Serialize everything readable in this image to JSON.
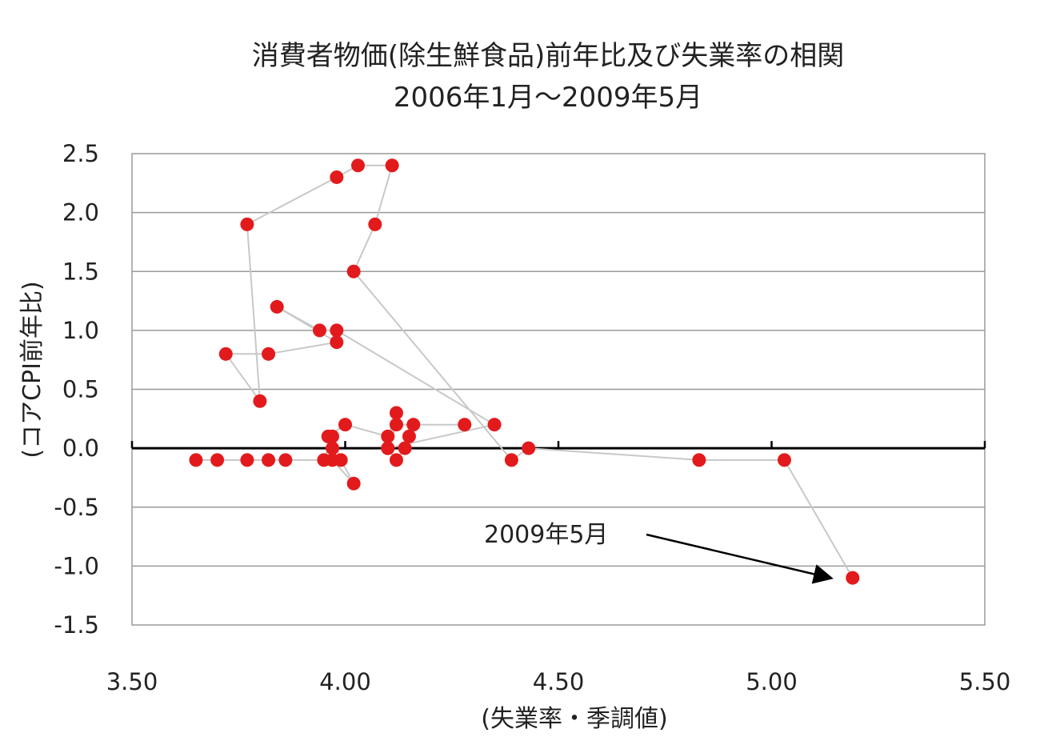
{
  "chart_data": {
    "type": "scatter",
    "title": "消費者物価(除生鮮食品)前年比及び失業率の相関",
    "subtitle": "2006年1月～2009年5月",
    "xlabel": "(失業率・季調値)",
    "ylabel": "(コアCPI前年比)",
    "xlim": [
      3.5,
      5.5
    ],
    "ylim": [
      -1.5,
      2.5
    ],
    "x_ticks": [
      "3.50",
      "4.00",
      "4.50",
      "5.00",
      "5.50"
    ],
    "y_ticks": [
      "2.5",
      "2.0",
      "1.5",
      "1.0",
      "0.5",
      "0.0",
      "-0.5",
      "-1.0",
      "-1.5"
    ],
    "grid": true,
    "marker_color": "#e31a1c",
    "line_color": "#c8c8c8",
    "zero_line_color": "#000000",
    "connected": true,
    "points": [
      {
        "x": 3.65,
        "y": -0.1
      },
      {
        "x": 3.7,
        "y": -0.1
      },
      {
        "x": 3.77,
        "y": -0.1
      },
      {
        "x": 3.82,
        "y": -0.1
      },
      {
        "x": 3.86,
        "y": -0.1
      },
      {
        "x": 3.95,
        "y": -0.1
      },
      {
        "x": 3.97,
        "y": 0.1
      },
      {
        "x": 3.99,
        "y": -0.1
      },
      {
        "x": 4.02,
        "y": -0.3
      },
      {
        "x": 3.97,
        "y": -0.1
      },
      {
        "x": 3.97,
        "y": 0.0
      },
      {
        "x": 3.96,
        "y": 0.1
      },
      {
        "x": 4.0,
        "y": 0.2
      },
      {
        "x": 4.1,
        "y": 0.1
      },
      {
        "x": 4.12,
        "y": 0.3
      },
      {
        "x": 4.1,
        "y": 0.0
      },
      {
        "x": 4.12,
        "y": -0.1
      },
      {
        "x": 4.14,
        "y": 0.0
      },
      {
        "x": 4.15,
        "y": 0.1
      },
      {
        "x": 4.16,
        "y": 0.2
      },
      {
        "x": 4.28,
        "y": 0.2
      },
      {
        "x": 4.12,
        "y": 0.2
      },
      {
        "x": 4.1,
        "y": 0.0
      },
      {
        "x": 4.35,
        "y": 0.2
      },
      {
        "x": 3.98,
        "y": 1.0
      },
      {
        "x": 3.94,
        "y": 1.0
      },
      {
        "x": 3.84,
        "y": 1.2
      },
      {
        "x": 3.98,
        "y": 0.9
      },
      {
        "x": 3.82,
        "y": 0.8
      },
      {
        "x": 3.72,
        "y": 0.8
      },
      {
        "x": 3.8,
        "y": 0.4
      },
      {
        "x": 3.77,
        "y": 1.9
      },
      {
        "x": 3.98,
        "y": 2.3
      },
      {
        "x": 4.03,
        "y": 2.4
      },
      {
        "x": 4.11,
        "y": 2.4
      },
      {
        "x": 4.07,
        "y": 1.9
      },
      {
        "x": 4.02,
        "y": 1.5
      },
      {
        "x": 4.39,
        "y": -0.1
      },
      {
        "x": 4.43,
        "y": 0.0
      },
      {
        "x": 4.83,
        "y": -0.1
      },
      {
        "x": 5.03,
        "y": -0.1
      },
      {
        "x": 5.19,
        "y": -1.1
      }
    ],
    "annotation": {
      "text": "2009年5月",
      "target_point_index": 41
    }
  }
}
